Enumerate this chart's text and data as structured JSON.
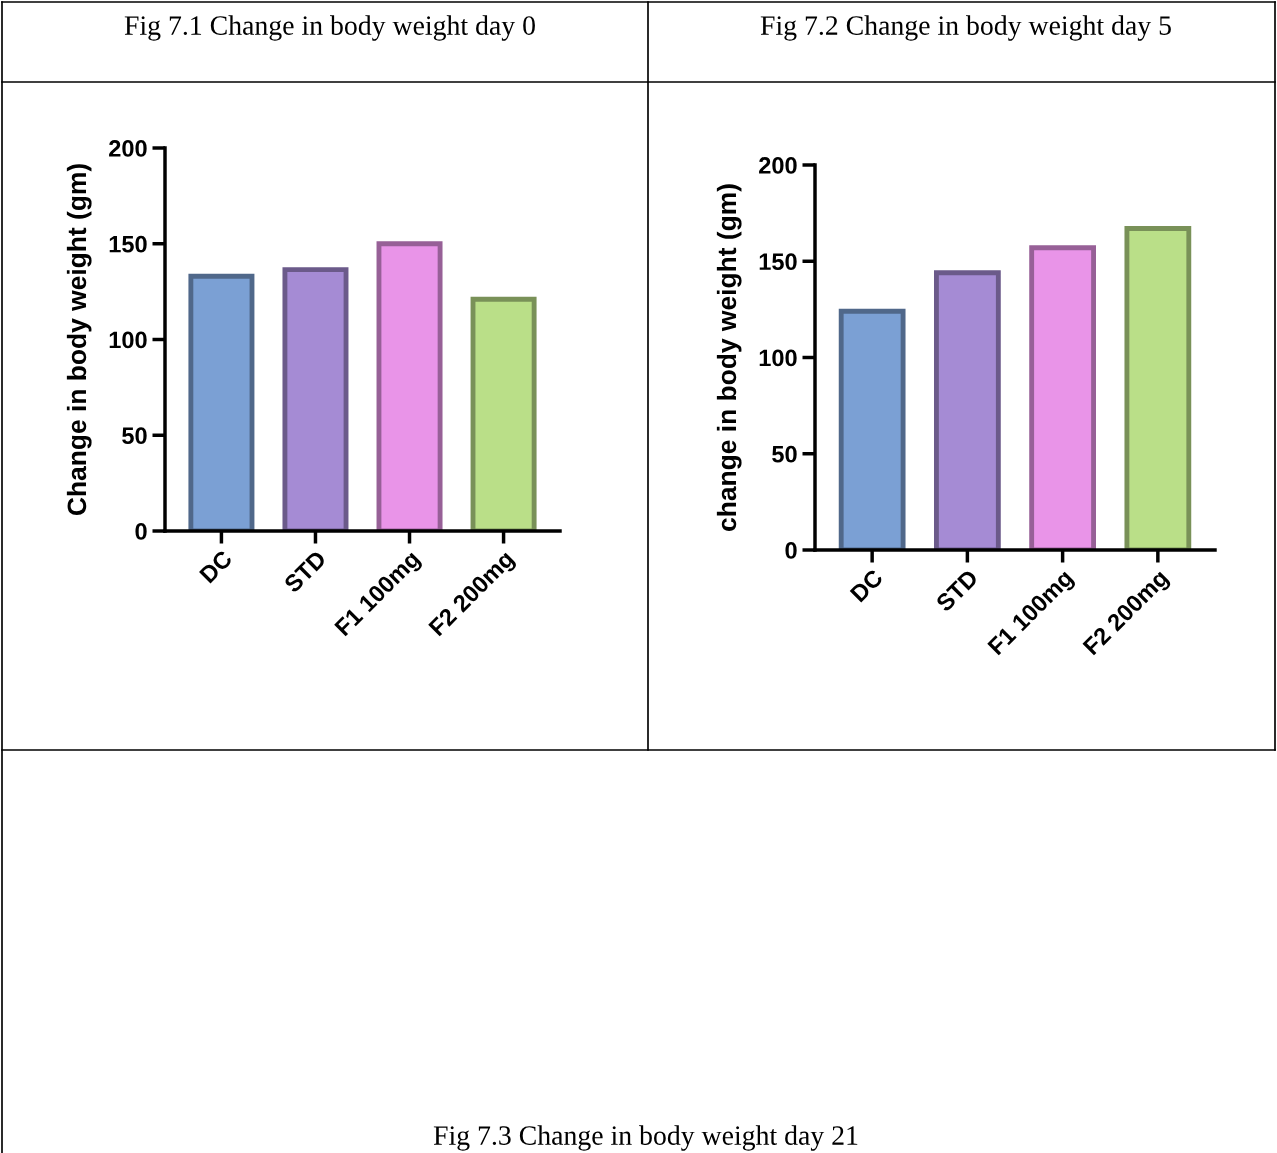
{
  "chart_data": [
    {
      "type": "bar",
      "title": "Fig 7.1 Change in body weight day 0",
      "ylabel": "Change in body weight (gm)",
      "categories": [
        "DC",
        "STD",
        "F1 100mg",
        "F2 200mg"
      ],
      "values": [
        133,
        136.5,
        150,
        121
      ],
      "colors": [
        "#7ba0d4",
        "#a58bd4",
        "#e994e8",
        "#badf88"
      ],
      "ylim": [
        0,
        200
      ],
      "yticks": [
        0,
        50,
        100,
        150,
        200
      ],
      "grid": false,
      "legend": false
    },
    {
      "type": "bar",
      "title": "Fig 7.2 Change in body weight day 5",
      "ylabel": "change in body weight (gm)",
      "categories": [
        "DC",
        "STD",
        "F1 100mg",
        "F2 200mg"
      ],
      "values": [
        124,
        144,
        157,
        167
      ],
      "colors": [
        "#7ba0d4",
        "#a58bd4",
        "#e994e8",
        "#badf88"
      ],
      "ylim": [
        0,
        200
      ],
      "yticks": [
        0,
        50,
        100,
        150,
        200
      ],
      "grid": false,
      "legend": false
    },
    {
      "type": "other",
      "title": "Fig 7.3 Change in body weight day 21"
    }
  ]
}
